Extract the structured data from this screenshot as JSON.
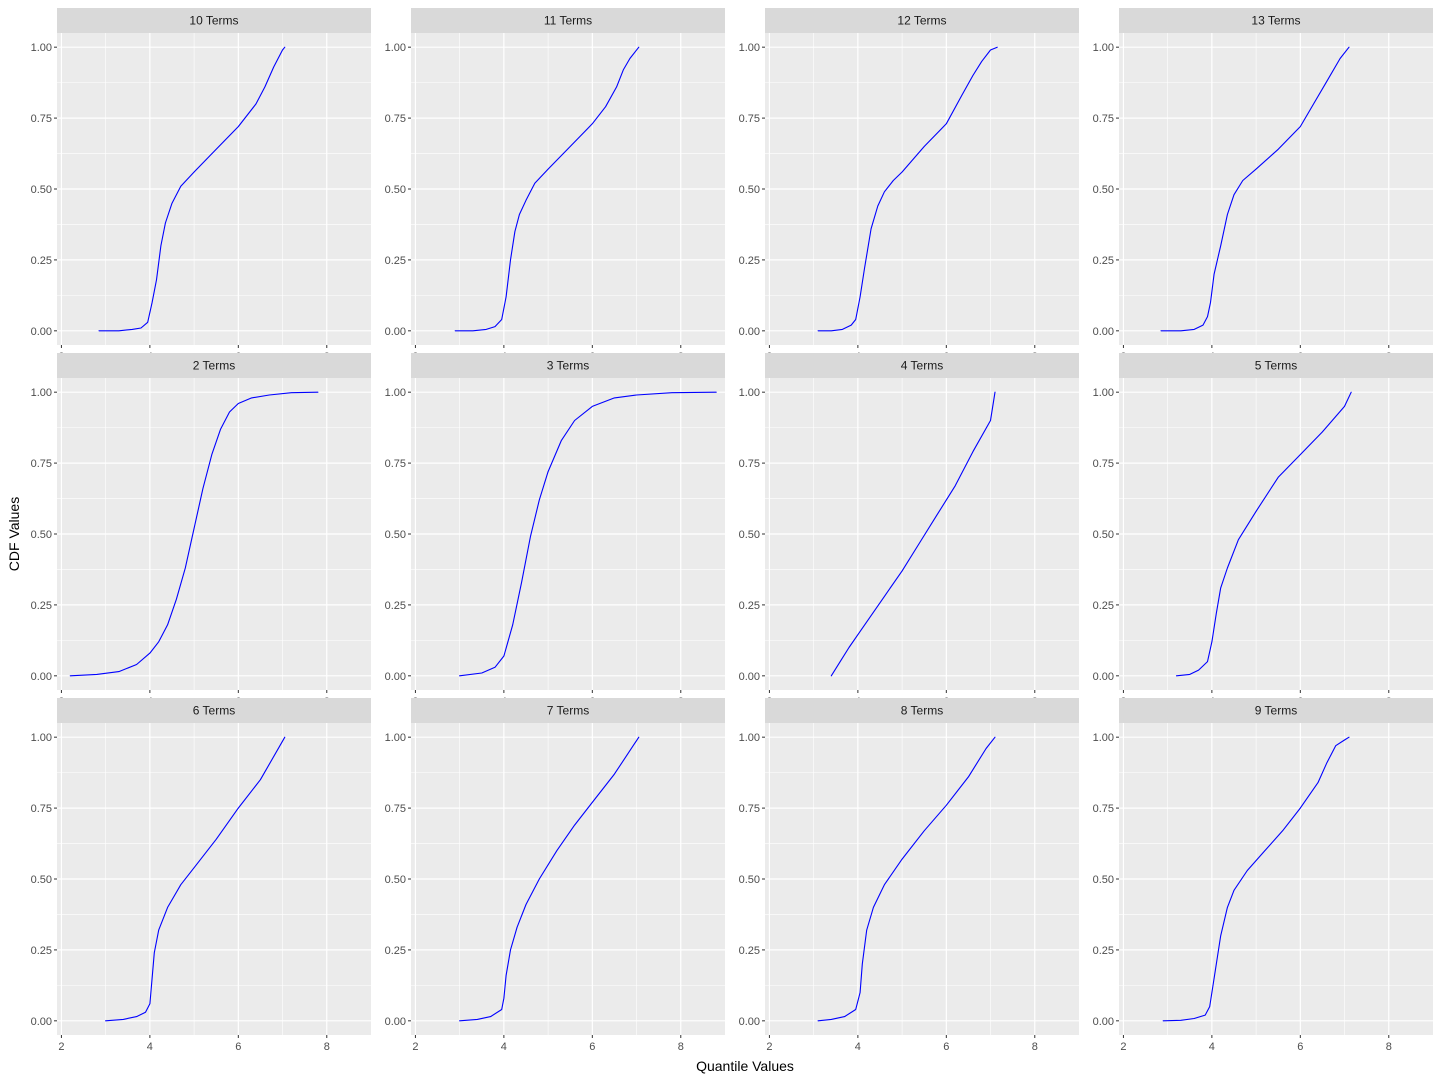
{
  "figure": {
    "xlabel": "Quantile Values",
    "ylabel": "CDF Values",
    "line_color": "#0000ff",
    "panel_background": "#ebebeb",
    "strip_background": "#d9d9d9",
    "grid_color": "#ffffff"
  },
  "chart_data": {
    "type": "line",
    "layout": "facet_wrap 3 rows x 4 columns",
    "xlabel": "Quantile Values",
    "ylabel": "CDF Values",
    "xlim": [
      1.9,
      9.0
    ],
    "ylim": [
      -0.05,
      1.05
    ],
    "x_ticks": [
      2,
      4,
      6,
      8
    ],
    "y_ticks": [
      0.0,
      0.25,
      0.5,
      0.75,
      1.0
    ],
    "x_tick_labels": [
      "2",
      "4",
      "6",
      "8"
    ],
    "y_tick_labels": [
      "0.00",
      "0.25",
      "0.50",
      "0.75",
      "1.00"
    ],
    "grid": true,
    "series": [
      {
        "name": "10 Terms",
        "x": [
          2.85,
          3.3,
          3.6,
          3.8,
          3.95,
          4.05,
          4.15,
          4.25,
          4.35,
          4.5,
          4.7,
          5.0,
          5.5,
          6.0,
          6.4,
          6.6,
          6.8,
          7.0,
          7.05
        ],
        "y": [
          0.0,
          0.0,
          0.005,
          0.01,
          0.03,
          0.1,
          0.18,
          0.3,
          0.38,
          0.45,
          0.51,
          0.56,
          0.64,
          0.72,
          0.8,
          0.86,
          0.93,
          0.99,
          1.0
        ]
      },
      {
        "name": "11 Terms",
        "x": [
          2.9,
          3.3,
          3.6,
          3.8,
          3.95,
          4.05,
          4.15,
          4.25,
          4.35,
          4.5,
          4.7,
          5.0,
          5.5,
          6.0,
          6.3,
          6.55,
          6.7,
          6.85,
          7.05
        ],
        "y": [
          0.0,
          0.0,
          0.005,
          0.015,
          0.04,
          0.12,
          0.25,
          0.35,
          0.41,
          0.46,
          0.52,
          0.57,
          0.65,
          0.73,
          0.79,
          0.86,
          0.92,
          0.96,
          1.0
        ]
      },
      {
        "name": "12 Terms",
        "x": [
          3.1,
          3.4,
          3.65,
          3.85,
          3.95,
          4.05,
          4.15,
          4.3,
          4.45,
          4.6,
          4.8,
          5.0,
          5.5,
          6.0,
          6.35,
          6.6,
          6.8,
          7.0,
          7.15
        ],
        "y": [
          0.0,
          0.0,
          0.005,
          0.02,
          0.04,
          0.12,
          0.22,
          0.36,
          0.44,
          0.49,
          0.53,
          0.56,
          0.65,
          0.73,
          0.83,
          0.9,
          0.95,
          0.99,
          1.0
        ]
      },
      {
        "name": "13 Terms",
        "x": [
          2.85,
          3.3,
          3.6,
          3.8,
          3.9,
          3.97,
          4.05,
          4.2,
          4.35,
          4.5,
          4.7,
          5.0,
          5.5,
          6.0,
          6.3,
          6.6,
          6.9,
          7.1
        ],
        "y": [
          0.0,
          0.0,
          0.005,
          0.02,
          0.05,
          0.1,
          0.2,
          0.3,
          0.41,
          0.48,
          0.53,
          0.57,
          0.64,
          0.72,
          0.8,
          0.88,
          0.96,
          1.0
        ]
      },
      {
        "name": "2 Terms",
        "x": [
          2.2,
          2.8,
          3.3,
          3.7,
          4.0,
          4.2,
          4.4,
          4.6,
          4.8,
          5.0,
          5.2,
          5.4,
          5.6,
          5.8,
          6.0,
          6.3,
          6.7,
          7.2,
          7.8
        ],
        "y": [
          0.0,
          0.005,
          0.015,
          0.04,
          0.08,
          0.12,
          0.18,
          0.27,
          0.38,
          0.52,
          0.66,
          0.78,
          0.87,
          0.93,
          0.96,
          0.98,
          0.99,
          0.998,
          1.0
        ]
      },
      {
        "name": "3 Terms",
        "x": [
          3.0,
          3.5,
          3.8,
          4.0,
          4.2,
          4.4,
          4.6,
          4.8,
          5.0,
          5.3,
          5.6,
          6.0,
          6.5,
          7.0,
          7.8,
          8.8
        ],
        "y": [
          0.0,
          0.01,
          0.03,
          0.07,
          0.18,
          0.33,
          0.49,
          0.62,
          0.72,
          0.83,
          0.9,
          0.95,
          0.98,
          0.99,
          0.998,
          1.0
        ]
      },
      {
        "name": "4 Terms",
        "x": [
          3.4,
          3.6,
          3.8,
          4.2,
          4.6,
          5.0,
          5.4,
          5.8,
          6.2,
          6.6,
          7.0,
          7.1
        ],
        "y": [
          0.0,
          0.05,
          0.1,
          0.19,
          0.28,
          0.37,
          0.47,
          0.57,
          0.67,
          0.79,
          0.9,
          1.0
        ]
      },
      {
        "name": "5 Terms",
        "x": [
          3.2,
          3.5,
          3.7,
          3.9,
          4.0,
          4.1,
          4.2,
          4.35,
          4.6,
          5.0,
          5.5,
          6.0,
          6.5,
          7.0,
          7.15
        ],
        "y": [
          0.0,
          0.005,
          0.02,
          0.05,
          0.12,
          0.22,
          0.31,
          0.38,
          0.48,
          0.58,
          0.7,
          0.78,
          0.86,
          0.95,
          1.0
        ]
      },
      {
        "name": "6 Terms",
        "x": [
          3.0,
          3.4,
          3.7,
          3.9,
          4.0,
          4.05,
          4.1,
          4.2,
          4.4,
          4.7,
          5.0,
          5.5,
          6.0,
          6.5,
          7.05
        ],
        "y": [
          0.0,
          0.005,
          0.015,
          0.03,
          0.06,
          0.15,
          0.24,
          0.32,
          0.4,
          0.48,
          0.54,
          0.64,
          0.75,
          0.85,
          1.0
        ]
      },
      {
        "name": "7 Terms",
        "x": [
          3.0,
          3.4,
          3.7,
          3.95,
          4.0,
          4.05,
          4.15,
          4.3,
          4.5,
          4.8,
          5.2,
          5.6,
          6.0,
          6.5,
          7.05
        ],
        "y": [
          0.0,
          0.005,
          0.015,
          0.04,
          0.08,
          0.16,
          0.25,
          0.33,
          0.41,
          0.5,
          0.6,
          0.69,
          0.77,
          0.87,
          1.0
        ]
      },
      {
        "name": "8 Terms",
        "x": [
          3.1,
          3.4,
          3.7,
          3.95,
          4.05,
          4.1,
          4.2,
          4.35,
          4.6,
          5.0,
          5.5,
          6.0,
          6.5,
          6.9,
          7.1
        ],
        "y": [
          0.0,
          0.005,
          0.015,
          0.04,
          0.1,
          0.2,
          0.32,
          0.4,
          0.48,
          0.57,
          0.67,
          0.76,
          0.86,
          0.96,
          1.0
        ]
      },
      {
        "name": "9 Terms",
        "x": [
          2.9,
          3.3,
          3.6,
          3.85,
          3.95,
          4.05,
          4.2,
          4.35,
          4.5,
          4.8,
          5.2,
          5.6,
          6.0,
          6.4,
          6.6,
          6.8,
          7.0,
          7.1
        ],
        "y": [
          0.0,
          0.002,
          0.008,
          0.02,
          0.05,
          0.15,
          0.3,
          0.4,
          0.46,
          0.53,
          0.6,
          0.67,
          0.75,
          0.84,
          0.91,
          0.97,
          0.99,
          1.0
        ]
      }
    ]
  }
}
